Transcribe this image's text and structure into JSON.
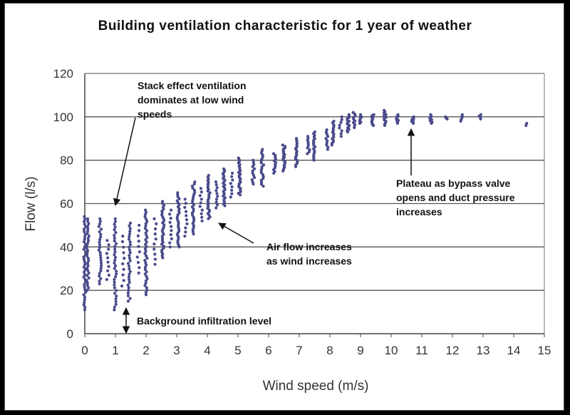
{
  "chart_data": {
    "type": "scatter",
    "title": "Building ventilation characteristic for 1  year of weather",
    "xlabel": "Wind speed (m/s)",
    "ylabel": "Flow (l/s)",
    "xlim": [
      0,
      15
    ],
    "ylim": [
      0,
      120
    ],
    "x_ticks": [
      "0",
      "1",
      "2",
      "3",
      "4",
      "5",
      "6",
      "7",
      "8",
      "9",
      "10",
      "11",
      "12",
      "13",
      "14",
      "15"
    ],
    "y_ticks": [
      "0",
      "20",
      "40",
      "60",
      "80",
      "100",
      "120"
    ],
    "grid": "horizontal",
    "marker_color": "#4a4a8c",
    "annotations": [
      {
        "lines": [
          "Stack effect ventilation",
          "dominates at low wind",
          "speeds"
        ]
      },
      {
        "lines": [
          "Air flow increases",
          "as wind increases"
        ]
      },
      {
        "lines": [
          "Plateau as bypass valve",
          "opens and duct pressure",
          "increases"
        ]
      },
      {
        "lines": [
          "Background infiltration level"
        ]
      }
    ],
    "columns": [
      {
        "x": 0.0,
        "ymin": 11,
        "ymax": 54,
        "n": 38
      },
      {
        "x": 0.1,
        "ymin": 20,
        "ymax": 53,
        "n": 30
      },
      {
        "x": 0.5,
        "ymin": 23,
        "ymax": 53,
        "n": 26
      },
      {
        "x": 0.75,
        "ymin": 25,
        "ymax": 43,
        "n": 10
      },
      {
        "x": 1.0,
        "ymin": 11,
        "ymax": 53,
        "n": 34
      },
      {
        "x": 1.25,
        "ymin": 22,
        "ymax": 45,
        "n": 10
      },
      {
        "x": 1.45,
        "ymin": 15,
        "ymax": 51,
        "n": 30
      },
      {
        "x": 1.75,
        "ymin": 28,
        "ymax": 50,
        "n": 10
      },
      {
        "x": 2.0,
        "ymin": 18,
        "ymax": 57,
        "n": 38
      },
      {
        "x": 2.3,
        "ymin": 32,
        "ymax": 53,
        "n": 10
      },
      {
        "x": 2.55,
        "ymin": 35,
        "ymax": 61,
        "n": 30
      },
      {
        "x": 2.8,
        "ymin": 40,
        "ymax": 57,
        "n": 10
      },
      {
        "x": 3.05,
        "ymin": 40,
        "ymax": 65,
        "n": 28
      },
      {
        "x": 3.3,
        "ymin": 45,
        "ymax": 62,
        "n": 10
      },
      {
        "x": 3.55,
        "ymin": 46,
        "ymax": 70,
        "n": 26
      },
      {
        "x": 3.8,
        "ymin": 52,
        "ymax": 67,
        "n": 10
      },
      {
        "x": 4.05,
        "ymin": 53,
        "ymax": 73,
        "n": 26
      },
      {
        "x": 4.3,
        "ymin": 58,
        "ymax": 70,
        "n": 10
      },
      {
        "x": 4.55,
        "ymin": 59,
        "ymax": 76,
        "n": 24
      },
      {
        "x": 4.8,
        "ymin": 63,
        "ymax": 74,
        "n": 8
      },
      {
        "x": 5.05,
        "ymin": 64,
        "ymax": 81,
        "n": 24
      },
      {
        "x": 5.5,
        "ymin": 69,
        "ymax": 80,
        "n": 12
      },
      {
        "x": 5.8,
        "ymin": 68,
        "ymax": 85,
        "n": 20
      },
      {
        "x": 6.2,
        "ymin": 74,
        "ymax": 83,
        "n": 12
      },
      {
        "x": 6.5,
        "ymin": 75,
        "ymax": 87,
        "n": 20
      },
      {
        "x": 6.9,
        "ymin": 77,
        "ymax": 90,
        "n": 18
      },
      {
        "x": 7.3,
        "ymin": 83,
        "ymax": 91,
        "n": 10
      },
      {
        "x": 7.5,
        "ymin": 80,
        "ymax": 93,
        "n": 18
      },
      {
        "x": 7.9,
        "ymin": 85,
        "ymax": 94,
        "n": 10
      },
      {
        "x": 8.1,
        "ymin": 87,
        "ymax": 98,
        "n": 16
      },
      {
        "x": 8.35,
        "ymin": 91,
        "ymax": 100,
        "n": 8
      },
      {
        "x": 8.6,
        "ymin": 93,
        "ymax": 101,
        "n": 14
      },
      {
        "x": 8.8,
        "ymin": 95,
        "ymax": 102,
        "n": 10
      },
      {
        "x": 9.0,
        "ymin": 97,
        "ymax": 101,
        "n": 8
      },
      {
        "x": 9.4,
        "ymin": 96,
        "ymax": 101,
        "n": 12
      },
      {
        "x": 9.8,
        "ymin": 96,
        "ymax": 103,
        "n": 12
      },
      {
        "x": 10.2,
        "ymin": 97,
        "ymax": 101,
        "n": 10
      },
      {
        "x": 10.7,
        "ymin": 97,
        "ymax": 100,
        "n": 8
      },
      {
        "x": 11.3,
        "ymin": 97,
        "ymax": 101,
        "n": 8
      },
      {
        "x": 11.8,
        "ymin": 99,
        "ymax": 100,
        "n": 4
      },
      {
        "x": 12.3,
        "ymin": 98,
        "ymax": 101,
        "n": 5
      },
      {
        "x": 12.9,
        "ymin": 99,
        "ymax": 101,
        "n": 4
      },
      {
        "x": 14.4,
        "ymin": 96,
        "ymax": 97,
        "n": 2
      }
    ]
  }
}
